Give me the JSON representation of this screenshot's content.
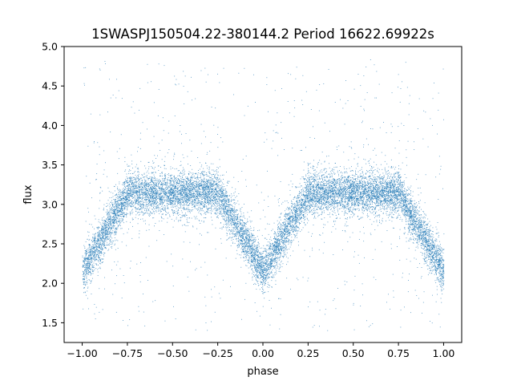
{
  "chart_data": {
    "type": "scatter",
    "title": "1SWASPJ150504.22-380144.2 Period 16622.69922s",
    "xlabel": "phase",
    "ylabel": "flux",
    "xlim": [
      -1.1,
      1.1
    ],
    "ylim": [
      1.25,
      5.0
    ],
    "xticks": [
      -1.0,
      -0.75,
      -0.5,
      -0.25,
      0.0,
      0.25,
      0.5,
      0.75,
      1.0
    ],
    "xtick_labels": [
      "−1.00",
      "−0.75",
      "−0.50",
      "−0.25",
      "0.00",
      "0.25",
      "0.50",
      "0.75",
      "1.00"
    ],
    "yticks": [
      1.5,
      2.0,
      2.5,
      3.0,
      3.5,
      4.0,
      4.5,
      5.0
    ],
    "ytick_labels": [
      "1.5",
      "2.0",
      "2.5",
      "3.0",
      "3.5",
      "4.0",
      "4.5",
      "5.0"
    ],
    "grid": false,
    "marker_color": "#1f77b4",
    "series": [
      {
        "phase_range": [
          -1.0,
          1.0
        ],
        "baseline_flux": 3.15,
        "baseline_scatter": 0.13,
        "eclipse_min_flux": 2.15,
        "eclipse_phases": [
          -1.0,
          0.0,
          1.0
        ],
        "eclipse_half_width": 0.25,
        "outlier_flux_range": [
          1.4,
          4.85
        ],
        "approx_point_count": 40000
      }
    ]
  }
}
